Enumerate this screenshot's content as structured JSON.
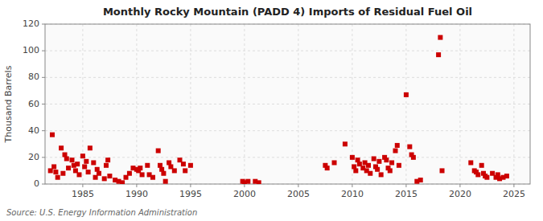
{
  "chart_data": {
    "type": "scatter",
    "title": "Monthly Rocky Mountain (PADD 4) Imports of Residual Fuel Oil",
    "ylabel": "Thousand Barrels",
    "source": "Source: U.S. Energy Information Administration",
    "color": "#cc0000",
    "marker": "square",
    "grid": true,
    "xlim": [
      1981.5,
      2026.5
    ],
    "xticks": [
      1985,
      1990,
      1995,
      2000,
      2005,
      2010,
      2015,
      2020,
      2025
    ],
    "ylim": [
      0,
      120
    ],
    "yticks": [
      0,
      20,
      40,
      60,
      80,
      100,
      120
    ],
    "x": [
      1982.0,
      1982.17,
      1982.33,
      1982.5,
      1982.67,
      1983.0,
      1983.17,
      1983.33,
      1983.5,
      1983.67,
      1984.0,
      1984.17,
      1984.33,
      1984.5,
      1984.67,
      1985.0,
      1985.17,
      1985.33,
      1985.5,
      1985.67,
      1986.0,
      1986.17,
      1986.33,
      1986.5,
      1987.0,
      1987.17,
      1987.33,
      1987.5,
      1988.0,
      1988.33,
      1988.67,
      1989.0,
      1989.33,
      1989.67,
      1990.0,
      1990.17,
      1990.33,
      1990.5,
      1991.0,
      1991.17,
      1991.5,
      1992.0,
      1992.17,
      1992.33,
      1992.5,
      1992.67,
      1993.0,
      1993.17,
      1993.5,
      1994.0,
      1994.33,
      1994.5,
      1995.0,
      1999.83,
      2000.0,
      2000.33,
      2001.0,
      2001.33,
      2007.5,
      2007.67,
      2008.33,
      2009.33,
      2010.0,
      2010.17,
      2010.33,
      2010.5,
      2010.67,
      2011.0,
      2011.17,
      2011.33,
      2011.5,
      2011.67,
      2012.0,
      2012.17,
      2012.33,
      2012.5,
      2012.67,
      2013.0,
      2013.17,
      2013.33,
      2013.5,
      2013.67,
      2014.0,
      2014.17,
      2014.33,
      2015.0,
      2015.33,
      2015.5,
      2015.67,
      2016.0,
      2016.33,
      2018.0,
      2018.17,
      2018.33,
      2021.0,
      2021.33,
      2021.5,
      2021.67,
      2022.0,
      2022.17,
      2022.33,
      2022.5,
      2023.0,
      2023.33,
      2023.5,
      2023.67,
      2024.0,
      2024.33
    ],
    "values": [
      10,
      37,
      13,
      9,
      5,
      27,
      8,
      22,
      19,
      12,
      18,
      14,
      10,
      15,
      7,
      21,
      13,
      17,
      9,
      27,
      16,
      5,
      11,
      8,
      4,
      14,
      18,
      6,
      3,
      2,
      1,
      5,
      8,
      12,
      11,
      10,
      12,
      7,
      14,
      7,
      5,
      25,
      14,
      11,
      8,
      2,
      16,
      13,
      10,
      18,
      15,
      10,
      14,
      2,
      1,
      2,
      2,
      1,
      14,
      12,
      16,
      30,
      20,
      13,
      10,
      18,
      15,
      12,
      16,
      10,
      14,
      8,
      19,
      13,
      11,
      17,
      7,
      20,
      18,
      12,
      10,
      16,
      25,
      29,
      14,
      67,
      28,
      22,
      20,
      2,
      3,
      97,
      110,
      10,
      16,
      10,
      9,
      7,
      14,
      8,
      6,
      5,
      8,
      5,
      7,
      4,
      5,
      6
    ]
  }
}
